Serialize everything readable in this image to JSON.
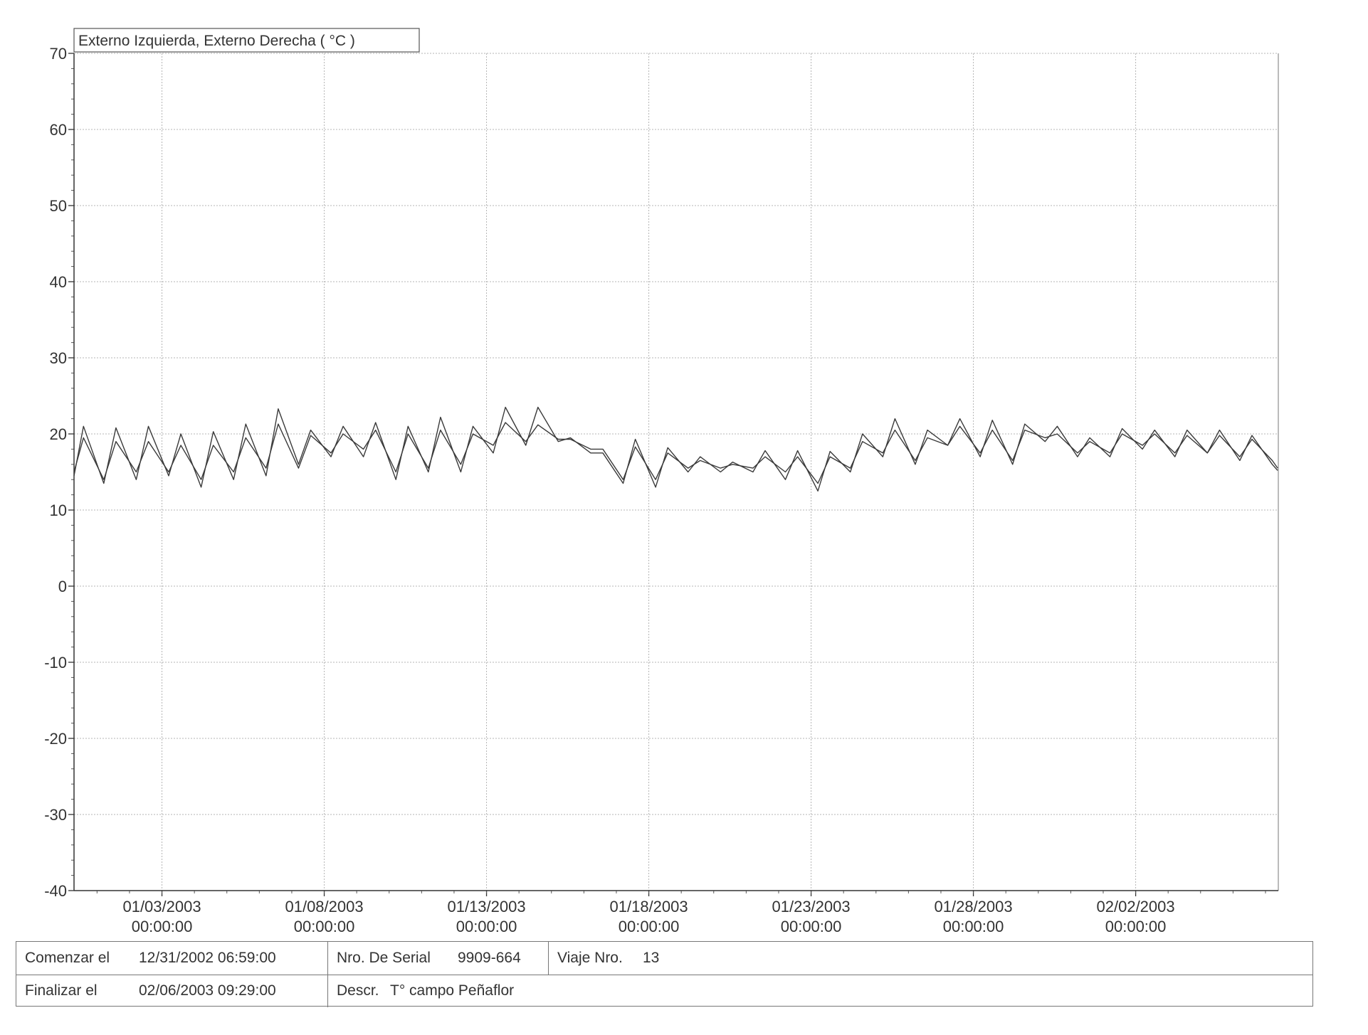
{
  "chart_data": {
    "type": "line",
    "title": "Externo Izquierda, Externo Derecha ( °C )",
    "ylim": [
      -40,
      70
    ],
    "y_ticks": [
      "70",
      "60",
      "50",
      "40",
      "30",
      "20",
      "10",
      "0",
      "-10",
      "-20",
      "-30",
      "-40"
    ],
    "x_ticks": [
      {
        "date": "01/03/2003",
        "time": "00:00:00"
      },
      {
        "date": "01/08/2003",
        "time": "00:00:00"
      },
      {
        "date": "01/13/2003",
        "time": "00:00:00"
      },
      {
        "date": "01/18/2003",
        "time": "00:00:00"
      },
      {
        "date": "01/23/2003",
        "time": "00:00:00"
      },
      {
        "date": "01/28/2003",
        "time": "00:00:00"
      },
      {
        "date": "02/02/2003",
        "time": "00:00:00"
      }
    ],
    "xlim": [
      "12/31/2002 06:59",
      "02/06/2003 09:29"
    ],
    "grid": true,
    "series": [
      {
        "x": [
          "12/31/2002 07:00",
          "12/31/2002 14:00",
          "01/01/2003 05:00",
          "01/01/2003 14:00",
          "01/02/2003 05:00",
          "01/02/2003 14:00",
          "01/03/2003 05:00",
          "01/03/2003 14:00",
          "01/04/2003 05:00",
          "01/04/2003 14:00",
          "01/05/2003 05:00",
          "01/05/2003 14:00",
          "01/06/2003 05:00",
          "01/06/2003 14:00",
          "01/07/2003 05:00",
          "01/07/2003 14:00",
          "01/08/2003 05:00",
          "01/08/2003 14:00",
          "01/09/2003 05:00",
          "01/09/2003 14:00",
          "01/10/2003 05:00",
          "01/10/2003 14:00",
          "01/11/2003 05:00",
          "01/11/2003 14:00",
          "01/12/2003 05:00",
          "01/12/2003 14:00",
          "01/13/2003 05:00",
          "01/13/2003 14:00",
          "01/14/2003 05:00",
          "01/14/2003 14:00",
          "01/15/2003 05:00",
          "01/15/2003 14:00",
          "01/16/2003 05:00",
          "01/16/2003 14:00",
          "01/17/2003 05:00",
          "01/17/2003 14:00",
          "01/18/2003 05:00",
          "01/18/2003 14:00",
          "01/19/2003 05:00",
          "01/19/2003 14:00",
          "01/20/2003 05:00",
          "01/20/2003 14:00",
          "01/21/2003 05:00",
          "01/21/2003 14:00",
          "01/22/2003 05:00",
          "01/22/2003 14:00",
          "01/23/2003 05:00",
          "01/23/2003 14:00",
          "01/24/2003 05:00",
          "01/24/2003 14:00",
          "01/25/2003 05:00",
          "01/25/2003 14:00",
          "01/26/2003 05:00",
          "01/26/2003 14:00",
          "01/27/2003 05:00",
          "01/27/2003 14:00",
          "01/28/2003 05:00",
          "01/28/2003 14:00",
          "01/29/2003 05:00",
          "01/29/2003 14:00",
          "01/30/2003 05:00",
          "01/30/2003 14:00",
          "01/31/2003 05:00",
          "01/31/2003 14:00",
          "02/01/2003 05:00",
          "02/01/2003 14:00",
          "02/02/2003 05:00",
          "02/02/2003 14:00",
          "02/03/2003 05:00",
          "02/03/2003 14:00",
          "02/04/2003 05:00",
          "02/04/2003 14:00",
          "02/05/2003 05:00",
          "02/05/2003 14:00",
          "02/06/2003 05:00",
          "02/06/2003 09:00"
        ],
        "values": [
          14.5,
          21,
          13.5,
          20.8,
          14,
          21,
          14.5,
          20,
          13,
          20.3,
          14,
          21.3,
          14.5,
          23.3,
          16,
          20.5,
          17,
          21,
          17,
          21.5,
          14,
          21,
          15,
          22.2,
          15,
          21,
          17.5,
          23.5,
          18.5,
          23.5,
          19,
          19.5,
          17.5,
          17.5,
          13.5,
          19.3,
          13,
          18.2,
          15,
          17,
          15,
          16.3,
          15,
          17.8,
          14,
          17.8,
          12.5,
          17.7,
          15,
          20,
          17,
          22,
          16,
          20.5,
          18.5,
          22,
          17,
          21.8,
          16,
          21.3,
          19,
          21,
          17,
          19.5,
          17,
          20.7,
          18,
          20.5,
          17,
          20.5,
          17.5,
          20.5,
          16.5,
          19.8,
          16,
          15.2
        ]
      },
      {
        "x": [
          "12/31/2002 07:00",
          "12/31/2002 14:00",
          "01/01/2003 05:00",
          "01/01/2003 14:00",
          "01/02/2003 05:00",
          "01/02/2003 14:00",
          "01/03/2003 05:00",
          "01/03/2003 14:00",
          "01/04/2003 05:00",
          "01/04/2003 14:00",
          "01/05/2003 05:00",
          "01/05/2003 14:00",
          "01/06/2003 05:00",
          "01/06/2003 14:00",
          "01/07/2003 05:00",
          "01/07/2003 14:00",
          "01/08/2003 05:00",
          "01/08/2003 14:00",
          "01/09/2003 05:00",
          "01/09/2003 14:00",
          "01/10/2003 05:00",
          "01/10/2003 14:00",
          "01/11/2003 05:00",
          "01/11/2003 14:00",
          "01/12/2003 05:00",
          "01/12/2003 14:00",
          "01/13/2003 05:00",
          "01/13/2003 14:00",
          "01/14/2003 05:00",
          "01/14/2003 14:00",
          "01/15/2003 05:00",
          "01/15/2003 14:00",
          "01/16/2003 05:00",
          "01/16/2003 14:00",
          "01/17/2003 05:00",
          "01/17/2003 14:00",
          "01/18/2003 05:00",
          "01/18/2003 14:00",
          "01/19/2003 05:00",
          "01/19/2003 14:00",
          "01/20/2003 05:00",
          "01/20/2003 14:00",
          "01/21/2003 05:00",
          "01/21/2003 14:00",
          "01/22/2003 05:00",
          "01/22/2003 14:00",
          "01/23/2003 05:00",
          "01/23/2003 14:00",
          "01/24/2003 05:00",
          "01/24/2003 14:00",
          "01/25/2003 05:00",
          "01/25/2003 14:00",
          "01/26/2003 05:00",
          "01/26/2003 14:00",
          "01/27/2003 05:00",
          "01/27/2003 14:00",
          "01/28/2003 05:00",
          "01/28/2003 14:00",
          "01/29/2003 05:00",
          "01/29/2003 14:00",
          "01/30/2003 05:00",
          "01/30/2003 14:00",
          "01/31/2003 05:00",
          "01/31/2003 14:00",
          "02/01/2003 05:00",
          "02/01/2003 14:00",
          "02/02/2003 05:00",
          "02/02/2003 14:00",
          "02/03/2003 05:00",
          "02/03/2003 14:00",
          "02/04/2003 05:00",
          "02/04/2003 14:00",
          "02/05/2003 05:00",
          "02/05/2003 14:00",
          "02/06/2003 05:00",
          "02/06/2003 09:00"
        ],
        "values": [
          15,
          19.5,
          14,
          19,
          15,
          19,
          15,
          18.5,
          14,
          18.5,
          15,
          19.5,
          15.5,
          21.3,
          15.5,
          19.8,
          17.5,
          20,
          18,
          20.5,
          15,
          20,
          15.5,
          20.5,
          16,
          20,
          18.5,
          21.5,
          19,
          21.2,
          19.3,
          19.3,
          18,
          18,
          14,
          18.3,
          14,
          17.5,
          15.5,
          16.5,
          15.5,
          16,
          15.5,
          17,
          15,
          17,
          13.5,
          17,
          15.5,
          19,
          17.5,
          20.5,
          16.5,
          19.5,
          18.5,
          21,
          17.5,
          20.5,
          16.5,
          20.5,
          19.5,
          20,
          17.5,
          19,
          17.5,
          20,
          18.5,
          20,
          17.5,
          19.8,
          17.5,
          19.8,
          17,
          19.3,
          16.5,
          15.5
        ]
      }
    ]
  },
  "footer": {
    "start_label": "Comenzar el",
    "start_value": "12/31/2002 06:59:00",
    "end_label": "Finalizar el",
    "end_value": "02/06/2003 09:29:00",
    "serial_label": "Nro. De Serial",
    "serial_value": "9909-664",
    "trip_label": "Viaje Nro.",
    "trip_value": "13",
    "descr_label": "Descr.",
    "descr_value": "T° campo Peñaflor"
  },
  "colors": {
    "line": "#3a3a3a",
    "grid": "#b5b5b5",
    "axis": "#333333"
  }
}
